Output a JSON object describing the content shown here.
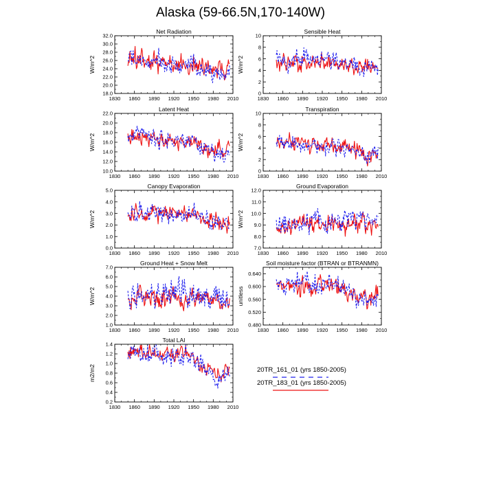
{
  "figure": {
    "title": "Alaska (59-66.5N,170-140W)"
  },
  "legend": {
    "entries": [
      {
        "label": "20TR_161_01 (yrs 1850-2005)",
        "color": "#2020ee",
        "style": "dashed"
      },
      {
        "label": "20TR_183_01 (yrs 1850-2005)",
        "color": "#ee1010",
        "style": "solid"
      }
    ]
  },
  "chart_data": [
    {
      "id": "net_radiation",
      "type": "line",
      "title": "Net Radiation",
      "ylabel": "W/m^2",
      "xlim": [
        1830,
        2010
      ],
      "ylim": [
        18,
        32
      ],
      "xticks": [
        1830,
        1860,
        1890,
        1920,
        1950,
        1980,
        2010
      ],
      "yticks": [
        18.0,
        20.0,
        22.0,
        24.0,
        26.0,
        28.0,
        30.0,
        32.0
      ],
      "yfmt": 1,
      "series": [
        {
          "name": "20TR_183_01",
          "trend": [
            [
              1850,
              25.5
            ],
            [
              1900,
              25.5
            ],
            [
              1950,
              25.2
            ],
            [
              1980,
              23.5
            ],
            [
              2005,
              24.0
            ]
          ],
          "amp": 2.6,
          "seed": 11
        },
        {
          "name": "20TR_161_01",
          "trend": [
            [
              1850,
              25.8
            ],
            [
              1900,
              25.6
            ],
            [
              1950,
              24.8
            ],
            [
              1980,
              22.5
            ],
            [
              2005,
              23.5
            ]
          ],
          "amp": 2.4,
          "seed": 12
        }
      ]
    },
    {
      "id": "sensible_heat",
      "type": "line",
      "title": "Sensible Heat",
      "ylabel": "W/m^2",
      "xlim": [
        1830,
        2010
      ],
      "ylim": [
        0,
        10
      ],
      "xticks": [
        1830,
        1860,
        1890,
        1920,
        1950,
        1980,
        2010
      ],
      "yticks": [
        0,
        2,
        4,
        6,
        8,
        10
      ],
      "yfmt": 0,
      "series": [
        {
          "name": "20TR_183_01",
          "trend": [
            [
              1850,
              5.0
            ],
            [
              1900,
              5.5
            ],
            [
              1950,
              5.2
            ],
            [
              1980,
              4.5
            ],
            [
              2005,
              4.8
            ]
          ],
          "amp": 1.5,
          "seed": 21
        },
        {
          "name": "20TR_161_01",
          "trend": [
            [
              1850,
              5.2
            ],
            [
              1900,
              5.9
            ],
            [
              1950,
              5.5
            ],
            [
              1980,
              4.6
            ],
            [
              2005,
              4.5
            ]
          ],
          "amp": 1.6,
          "seed": 22
        }
      ]
    },
    {
      "id": "latent_heat",
      "type": "line",
      "title": "Latent Heat",
      "ylabel": "W/m^2",
      "xlim": [
        1830,
        2010
      ],
      "ylim": [
        10,
        22
      ],
      "xticks": [
        1830,
        1860,
        1890,
        1920,
        1950,
        1980,
        2010
      ],
      "yticks": [
        10.0,
        12.0,
        14.0,
        16.0,
        18.0,
        20.0,
        22.0
      ],
      "yfmt": 1,
      "series": [
        {
          "name": "20TR_183_01",
          "trend": [
            [
              1850,
              17.0
            ],
            [
              1900,
              16.5
            ],
            [
              1950,
              15.8
            ],
            [
              1980,
              14.2
            ],
            [
              2005,
              14.3
            ]
          ],
          "amp": 1.7,
          "seed": 31
        },
        {
          "name": "20TR_161_01",
          "trend": [
            [
              1850,
              17.5
            ],
            [
              1900,
              16.8
            ],
            [
              1950,
              16.0
            ],
            [
              1980,
              13.8
            ],
            [
              2005,
              14.0
            ]
          ],
          "amp": 1.8,
          "seed": 32
        }
      ]
    },
    {
      "id": "transpiration",
      "type": "line",
      "title": "Transpiration",
      "ylabel": "W/m^2",
      "xlim": [
        1830,
        2010
      ],
      "ylim": [
        0,
        10
      ],
      "xticks": [
        1830,
        1860,
        1890,
        1920,
        1950,
        1980,
        2010
      ],
      "yticks": [
        0,
        2,
        4,
        6,
        8,
        10
      ],
      "yfmt": 0,
      "series": [
        {
          "name": "20TR_183_01",
          "trend": [
            [
              1850,
              5.5
            ],
            [
              1900,
              4.6
            ],
            [
              1950,
              4.2
            ],
            [
              1980,
              3.0
            ],
            [
              2005,
              3.0
            ]
          ],
          "amp": 1.3,
          "seed": 41
        },
        {
          "name": "20TR_161_01",
          "trend": [
            [
              1850,
              5.2
            ],
            [
              1900,
              4.5
            ],
            [
              1950,
              4.0
            ],
            [
              1980,
              2.8
            ],
            [
              2005,
              2.9
            ]
          ],
          "amp": 1.3,
          "seed": 42
        }
      ]
    },
    {
      "id": "canopy_evaporation",
      "type": "line",
      "title": "Canopy Evaporation",
      "ylabel": "W/m^2",
      "xlim": [
        1830,
        2010
      ],
      "ylim": [
        0,
        5
      ],
      "xticks": [
        1830,
        1860,
        1890,
        1920,
        1950,
        1980,
        2010
      ],
      "yticks": [
        0.0,
        1.0,
        2.0,
        3.0,
        4.0,
        5.0
      ],
      "yfmt": 1,
      "series": [
        {
          "name": "20TR_183_01",
          "trend": [
            [
              1850,
              3.2
            ],
            [
              1900,
              2.9
            ],
            [
              1950,
              3.0
            ],
            [
              1980,
              2.2
            ],
            [
              2005,
              2.1
            ]
          ],
          "amp": 0.7,
          "seed": 51
        },
        {
          "name": "20TR_161_01",
          "trend": [
            [
              1850,
              3.3
            ],
            [
              1900,
              3.0
            ],
            [
              1950,
              2.9
            ],
            [
              1980,
              2.1
            ],
            [
              2005,
              2.0
            ]
          ],
          "amp": 0.75,
          "seed": 52
        }
      ]
    },
    {
      "id": "ground_evaporation",
      "type": "line",
      "title": "Ground Evaporation",
      "ylabel": "W/m^2",
      "xlim": [
        1830,
        2010
      ],
      "ylim": [
        7,
        12
      ],
      "xticks": [
        1830,
        1860,
        1890,
        1920,
        1950,
        1980,
        2010
      ],
      "yticks": [
        7.0,
        8.0,
        9.0,
        10.0,
        11.0,
        12.0
      ],
      "yfmt": 1,
      "series": [
        {
          "name": "20TR_183_01",
          "trend": [
            [
              1850,
              8.6
            ],
            [
              1900,
              8.9
            ],
            [
              1950,
              9.2
            ],
            [
              1980,
              9.3
            ],
            [
              2005,
              9.0
            ]
          ],
          "amp": 0.8,
          "seed": 61
        },
        {
          "name": "20TR_161_01",
          "trend": [
            [
              1850,
              8.9
            ],
            [
              1900,
              9.2
            ],
            [
              1950,
              9.5
            ],
            [
              1980,
              9.6
            ],
            [
              2005,
              9.4
            ]
          ],
          "amp": 0.9,
          "seed": 62
        }
      ]
    },
    {
      "id": "ground_heat_snow_melt",
      "type": "line",
      "title": "Ground Heat + Snow Melt",
      "ylabel": "W/m^2",
      "xlim": [
        1830,
        2010
      ],
      "ylim": [
        1,
        7
      ],
      "xticks": [
        1830,
        1860,
        1890,
        1920,
        1950,
        1980,
        2010
      ],
      "yticks": [
        1.0,
        2.0,
        3.0,
        4.0,
        5.0,
        6.0,
        7.0
      ],
      "yfmt": 1,
      "series": [
        {
          "name": "20TR_183_01",
          "trend": [
            [
              1850,
              3.6
            ],
            [
              1900,
              3.8
            ],
            [
              1950,
              3.9
            ],
            [
              1980,
              3.7
            ],
            [
              2005,
              3.8
            ]
          ],
          "amp": 1.1,
          "seed": 71
        },
        {
          "name": "20TR_161_01",
          "trend": [
            [
              1850,
              3.9
            ],
            [
              1900,
              4.1
            ],
            [
              1950,
              4.0
            ],
            [
              1980,
              3.6
            ],
            [
              2005,
              3.5
            ]
          ],
          "amp": 1.3,
          "seed": 72
        }
      ]
    },
    {
      "id": "soil_moisture_factor",
      "type": "line",
      "title": "Soil moisture factor (BTRAN or BTRANMN)",
      "ylabel": "unitless",
      "xlim": [
        1830,
        2010
      ],
      "ylim": [
        0.48,
        0.66
      ],
      "xticks": [
        1830,
        1860,
        1890,
        1920,
        1950,
        1980,
        2010
      ],
      "yticks": [
        0.48,
        0.52,
        0.56,
        0.6,
        0.64
      ],
      "yfmt": 3,
      "series": [
        {
          "name": "20TR_183_01",
          "trend": [
            [
              1850,
              0.605
            ],
            [
              1900,
              0.6
            ],
            [
              1950,
              0.595
            ],
            [
              1980,
              0.565
            ],
            [
              2005,
              0.57
            ]
          ],
          "amp": 0.028,
          "seed": 81
        },
        {
          "name": "20TR_161_01",
          "trend": [
            [
              1850,
              0.61
            ],
            [
              1900,
              0.605
            ],
            [
              1950,
              0.595
            ],
            [
              1980,
              0.555
            ],
            [
              2005,
              0.56
            ]
          ],
          "amp": 0.03,
          "seed": 82
        }
      ]
    },
    {
      "id": "total_lai",
      "type": "line",
      "title": "Total LAI",
      "ylabel": "m2/m2",
      "xlim": [
        1830,
        2010
      ],
      "ylim": [
        0.2,
        1.4
      ],
      "xticks": [
        1830,
        1860,
        1890,
        1920,
        1950,
        1980,
        2010
      ],
      "yticks": [
        0.2,
        0.4,
        0.6,
        0.8,
        1.0,
        1.2,
        1.4
      ],
      "yfmt": 1,
      "series": [
        {
          "name": "20TR_183_01",
          "trend": [
            [
              1850,
              1.25
            ],
            [
              1900,
              1.18
            ],
            [
              1940,
              1.2
            ],
            [
              1960,
              1.0
            ],
            [
              1985,
              0.8
            ],
            [
              2005,
              0.85
            ]
          ],
          "amp": 0.15,
          "seed": 91
        },
        {
          "name": "20TR_161_01",
          "trend": [
            [
              1850,
              1.22
            ],
            [
              1900,
              1.2
            ],
            [
              1940,
              1.18
            ],
            [
              1960,
              0.95
            ],
            [
              1985,
              0.65
            ],
            [
              2005,
              0.8
            ]
          ],
          "amp": 0.2,
          "seed": 92
        }
      ]
    }
  ]
}
